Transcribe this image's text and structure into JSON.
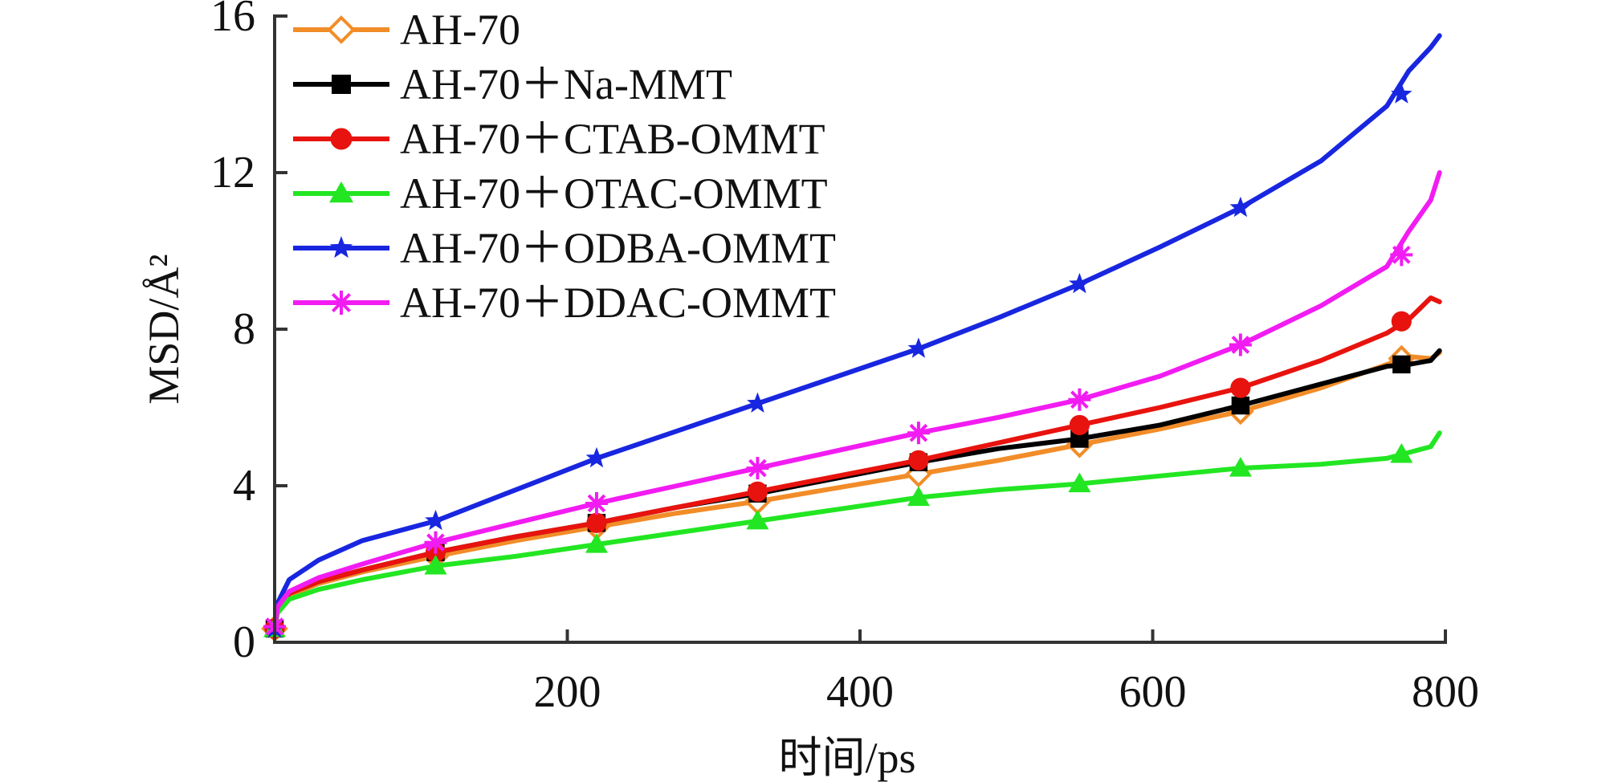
{
  "chart_data": {
    "type": "line",
    "title": "",
    "xlabel": "时间/ps",
    "ylabel": "MSD/Å²",
    "xlim": [
      0,
      800
    ],
    "ylim": [
      0,
      16
    ],
    "xticks": [
      200,
      400,
      600,
      800
    ],
    "xtick_labels": [
      "200",
      "400",
      "600",
      "800"
    ],
    "yticks": [
      0,
      4,
      8,
      12,
      16
    ],
    "ytick_labels": [
      "0",
      "4",
      "8",
      "12",
      "16"
    ],
    "grid": false,
    "legend_position": "top-left",
    "series": [
      {
        "name": "AH-70",
        "color": "#F28C28",
        "marker": "diamond-open",
        "x": [
          0,
          2,
          10,
          30,
          60,
          110,
          165,
          220,
          275,
          330,
          385,
          440,
          495,
          550,
          605,
          660,
          715,
          760,
          775,
          790,
          796
        ],
        "y": [
          0.3,
          0.8,
          1.2,
          1.5,
          1.8,
          2.2,
          2.6,
          2.95,
          3.3,
          3.6,
          3.95,
          4.3,
          4.65,
          5.05,
          5.45,
          5.9,
          6.5,
          7.1,
          7.3,
          7.25,
          7.4
        ],
        "marker_x": [
          0,
          110,
          220,
          330,
          440,
          550,
          660,
          770
        ],
        "marker_y": [
          0.35,
          2.2,
          2.95,
          3.6,
          4.3,
          5.05,
          5.9,
          7.25
        ]
      },
      {
        "name": "AH-70＋Na-MMT",
        "color": "#000000",
        "marker": "square",
        "x": [
          0,
          2,
          10,
          30,
          60,
          110,
          165,
          220,
          275,
          330,
          385,
          440,
          495,
          550,
          605,
          660,
          715,
          760,
          775,
          790,
          796
        ],
        "y": [
          0.3,
          0.85,
          1.25,
          1.55,
          1.85,
          2.3,
          2.7,
          3.05,
          3.45,
          3.8,
          4.2,
          4.6,
          4.95,
          5.2,
          5.55,
          6.05,
          6.6,
          7.05,
          7.1,
          7.2,
          7.45
        ],
        "marker_x": [
          0,
          110,
          220,
          330,
          440,
          550,
          660,
          770
        ],
        "marker_y": [
          0.35,
          2.3,
          3.05,
          3.8,
          4.6,
          5.2,
          6.05,
          7.1
        ]
      },
      {
        "name": "AH-70＋CTAB-OMMT",
        "color": "#E8130E",
        "marker": "circle",
        "x": [
          0,
          2,
          10,
          30,
          60,
          110,
          165,
          220,
          275,
          330,
          385,
          440,
          495,
          550,
          605,
          660,
          715,
          760,
          775,
          790,
          796
        ],
        "y": [
          0.3,
          0.85,
          1.25,
          1.55,
          1.85,
          2.3,
          2.7,
          3.05,
          3.45,
          3.85,
          4.25,
          4.65,
          5.1,
          5.55,
          6.0,
          6.5,
          7.2,
          7.9,
          8.25,
          8.8,
          8.7
        ],
        "marker_x": [
          0,
          110,
          220,
          330,
          440,
          550,
          660,
          770
        ],
        "marker_y": [
          0.35,
          2.3,
          3.05,
          3.85,
          4.65,
          5.55,
          6.5,
          8.2
        ]
      },
      {
        "name": "AH-70＋OTAC-OMMT",
        "color": "#22E622",
        "marker": "triangle",
        "x": [
          0,
          2,
          10,
          30,
          60,
          110,
          165,
          220,
          275,
          330,
          385,
          440,
          495,
          550,
          605,
          660,
          715,
          760,
          775,
          790,
          796
        ],
        "y": [
          0.3,
          0.75,
          1.1,
          1.35,
          1.6,
          1.95,
          2.2,
          2.5,
          2.8,
          3.1,
          3.4,
          3.7,
          3.9,
          4.05,
          4.25,
          4.45,
          4.55,
          4.7,
          4.85,
          5.0,
          5.35
        ],
        "marker_x": [
          0,
          110,
          220,
          330,
          440,
          550,
          660,
          770
        ],
        "marker_y": [
          0.35,
          1.95,
          2.5,
          3.1,
          3.7,
          4.05,
          4.45,
          4.8
        ]
      },
      {
        "name": "AH-70＋ODBA-OMMT",
        "color": "#1826E0",
        "marker": "star",
        "x": [
          0,
          2,
          10,
          30,
          60,
          110,
          165,
          220,
          275,
          330,
          385,
          440,
          495,
          550,
          605,
          660,
          715,
          760,
          775,
          790,
          796
        ],
        "y": [
          0.3,
          1.0,
          1.6,
          2.1,
          2.6,
          3.1,
          3.9,
          4.7,
          5.4,
          6.1,
          6.8,
          7.5,
          8.3,
          9.15,
          10.1,
          11.1,
          12.3,
          13.7,
          14.6,
          15.2,
          15.5
        ],
        "marker_x": [
          0,
          110,
          220,
          330,
          440,
          550,
          660,
          770
        ],
        "marker_y": [
          0.35,
          3.1,
          4.7,
          6.1,
          7.5,
          9.15,
          11.1,
          14.0
        ]
      },
      {
        "name": "AH-70＋DDAC-OMMT",
        "color": "#F21CF2",
        "marker": "asterisk",
        "x": [
          0,
          2,
          10,
          30,
          60,
          110,
          165,
          220,
          275,
          330,
          385,
          440,
          495,
          550,
          605,
          660,
          715,
          760,
          775,
          790,
          796
        ],
        "y": [
          0.3,
          0.9,
          1.3,
          1.65,
          2.0,
          2.55,
          3.05,
          3.55,
          4.0,
          4.45,
          4.9,
          5.35,
          5.75,
          6.2,
          6.8,
          7.6,
          8.6,
          9.6,
          10.5,
          11.3,
          12.0
        ],
        "marker_x": [
          0,
          110,
          220,
          330,
          440,
          550,
          660,
          770
        ],
        "marker_y": [
          0.4,
          2.55,
          3.55,
          4.45,
          5.35,
          6.2,
          7.6,
          9.9
        ]
      }
    ]
  }
}
